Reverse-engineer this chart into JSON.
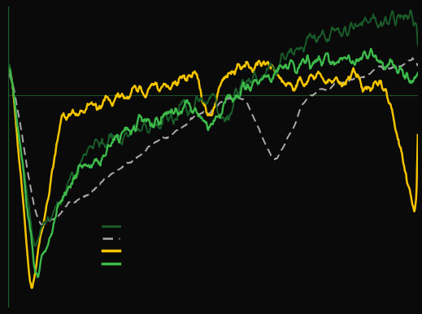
{
  "background_color": "#0a0a0a",
  "plot_bg_color": "#0a0a0a",
  "line_colors": {
    "dark_green": "#1a5c2a",
    "gray_dashed": "#aaaaaa",
    "yellow": "#f5c400",
    "bright_green": "#3dba4a"
  },
  "hline_color": "#2d7a3a",
  "hline_y": -8,
  "ylim": [
    -75,
    20
  ],
  "lw_dark_green": 1.4,
  "lw_gray": 1.4,
  "lw_yellow": 1.8,
  "lw_bright_green": 1.7
}
